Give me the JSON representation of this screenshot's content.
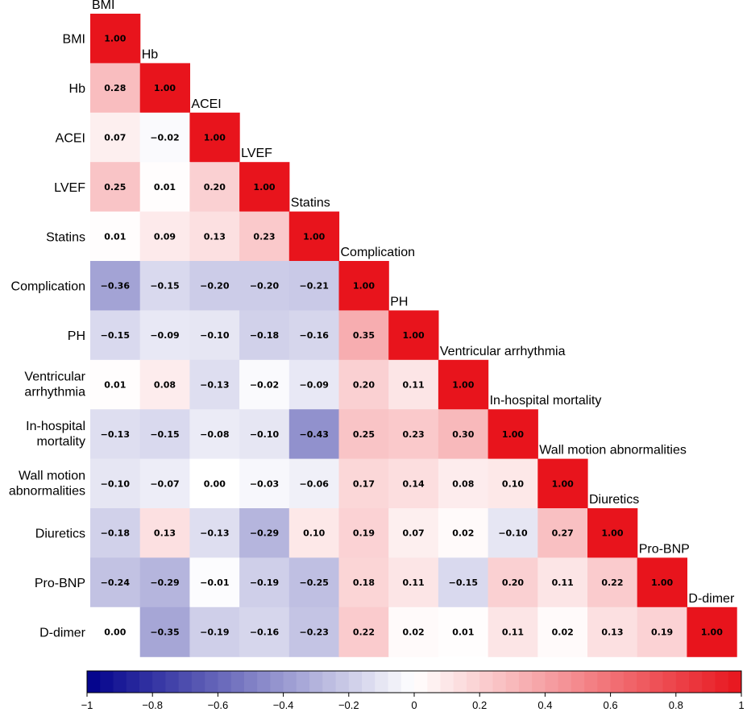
{
  "chart_data": {
    "type": "heatmap",
    "title": "",
    "variables": [
      "BMI",
      "Hb",
      "ACEI",
      "LVEF",
      "Statins",
      "Complication",
      "PH",
      "Ventricular arrhythmia",
      "In-hospital mortality",
      "Wall motion abnormalities",
      "Diuretics",
      "Pro-BNP",
      "D-dimer"
    ],
    "row_labels": [
      [
        "BMI"
      ],
      [
        "Hb"
      ],
      [
        "ACEI"
      ],
      [
        "LVEF"
      ],
      [
        "Statins"
      ],
      [
        "Complication"
      ],
      [
        "PH"
      ],
      [
        "Ventricular",
        "arrhythmia"
      ],
      [
        "In-hospital",
        "mortality"
      ],
      [
        "Wall motion",
        "abnormalities"
      ],
      [
        "Diuretics"
      ],
      [
        "Pro-BNP"
      ],
      [
        "D-dimer"
      ]
    ],
    "matrix": [
      [
        1.0
      ],
      [
        0.28,
        1.0
      ],
      [
        0.07,
        -0.02,
        1.0
      ],
      [
        0.25,
        0.01,
        0.2,
        1.0
      ],
      [
        0.01,
        0.09,
        0.13,
        0.23,
        1.0
      ],
      [
        -0.36,
        -0.15,
        -0.2,
        -0.2,
        -0.21,
        1.0
      ],
      [
        -0.15,
        -0.09,
        -0.1,
        -0.18,
        -0.16,
        0.35,
        1.0
      ],
      [
        0.01,
        0.08,
        -0.13,
        -0.02,
        -0.09,
        0.2,
        0.11,
        1.0
      ],
      [
        -0.13,
        -0.15,
        -0.08,
        -0.1,
        -0.43,
        0.25,
        0.23,
        0.3,
        1.0
      ],
      [
        -0.1,
        -0.07,
        0.0,
        -0.03,
        -0.06,
        0.17,
        0.14,
        0.08,
        0.1,
        1.0
      ],
      [
        -0.18,
        0.13,
        -0.13,
        -0.29,
        0.1,
        0.19,
        0.07,
        0.02,
        -0.1,
        0.27,
        1.0
      ],
      [
        -0.24,
        -0.29,
        -0.01,
        -0.19,
        -0.25,
        0.18,
        0.11,
        -0.15,
        0.2,
        0.11,
        0.22,
        1.0
      ],
      [
        0.0,
        -0.35,
        -0.19,
        -0.16,
        -0.23,
        0.22,
        0.02,
        0.01,
        0.11,
        0.02,
        0.13,
        0.19,
        1.0
      ]
    ],
    "colorbar": {
      "range": [
        -1,
        1
      ],
      "ticks": [
        -1,
        -0.8,
        -0.6,
        -0.4,
        -0.2,
        0,
        0.2,
        0.4,
        0.6,
        0.8,
        1
      ],
      "tick_labels": [
        "−1",
        "−0.8",
        "−0.6",
        "−0.4",
        "−0.2",
        "0",
        "0.2",
        "0.4",
        "0.6",
        "0.8",
        "1"
      ],
      "low_color": "#00008b",
      "mid_color": "#ffffff",
      "high_color": "#e8141c"
    }
  }
}
